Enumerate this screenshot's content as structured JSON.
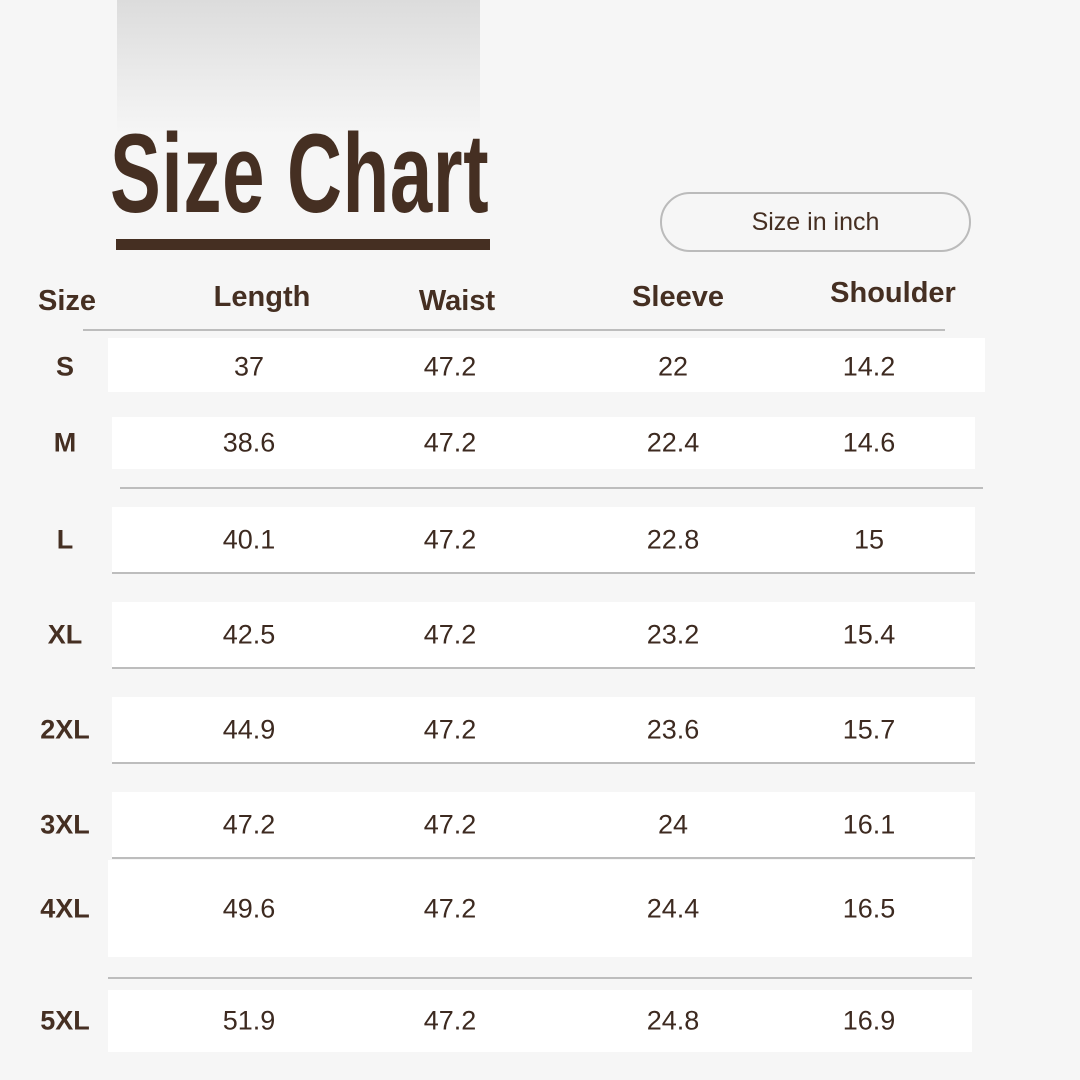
{
  "title": "Size Chart",
  "unit_label": "Size in inch",
  "colors": {
    "brand": "#452f22",
    "background": "#f6f6f6",
    "row": "#ffffff",
    "divider": "#bdbdbd"
  },
  "headers": [
    "Size",
    "Length",
    "Waist",
    "Sleeve",
    "Shoulder"
  ],
  "rows": [
    {
      "size": "S",
      "length": "37",
      "waist": "47.2",
      "sleeve": "22",
      "shoulder": "14.2"
    },
    {
      "size": "M",
      "length": "38.6",
      "waist": "47.2",
      "sleeve": "22.4",
      "shoulder": "14.6"
    },
    {
      "size": "L",
      "length": "40.1",
      "waist": "47.2",
      "sleeve": "22.8",
      "shoulder": "15"
    },
    {
      "size": "XL",
      "length": "42.5",
      "waist": "47.2",
      "sleeve": "23.2",
      "shoulder": "15.4"
    },
    {
      "size": "2XL",
      "length": "44.9",
      "waist": "47.2",
      "sleeve": "23.6",
      "shoulder": "15.7"
    },
    {
      "size": "3XL",
      "length": "47.2",
      "waist": "47.2",
      "sleeve": "24",
      "shoulder": "16.1"
    },
    {
      "size": "4XL",
      "length": "49.6",
      "waist": "47.2",
      "sleeve": "24.4",
      "shoulder": "16.5"
    },
    {
      "size": "5XL",
      "length": "51.9",
      "waist": "47.2",
      "sleeve": "24.8",
      "shoulder": "16.9"
    }
  ]
}
